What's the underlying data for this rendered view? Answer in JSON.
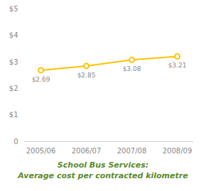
{
  "chart_data": {
    "type": "line",
    "title": "School Bus Services:",
    "subtitle": "Average cost per contracted kilometre",
    "categories": [
      "2005/06",
      "2006/07",
      "2007/08",
      "2008/09"
    ],
    "values": [
      2.69,
      2.85,
      3.08,
      3.21
    ],
    "value_labels": [
      "$2.69",
      "$2.85",
      "$3.08",
      "$3.21"
    ],
    "data_labels": true,
    "color": "#FFC200",
    "marker": "circle",
    "ylim": [
      0,
      5
    ],
    "yticks": [
      0,
      {
        "value": 1,
        "label": "$1"
      },
      {
        "value": 2,
        "label": "$2"
      },
      {
        "value": 3,
        "label": "$3"
      },
      {
        "value": 4,
        "label": "$4"
      },
      {
        "value": 5,
        "label": "$5"
      }
    ],
    "grid": false
  }
}
